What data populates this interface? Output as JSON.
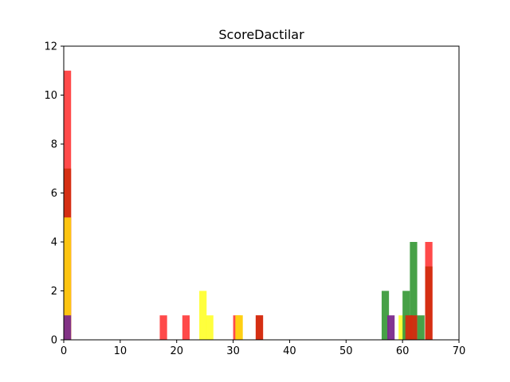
{
  "chart_data": {
    "type": "bar",
    "title": "ScoreDactilar",
    "xlabel": "",
    "ylabel": "",
    "xlim": [
      0,
      70
    ],
    "ylim": [
      0,
      12
    ],
    "x_ticks": [
      0,
      10,
      20,
      30,
      40,
      50,
      60,
      70
    ],
    "y_ticks": [
      0,
      2,
      4,
      6,
      8,
      10,
      12
    ],
    "grid": false,
    "legend": "none",
    "bin_width": 1.3,
    "colors": {
      "red": "#ff0000",
      "yellow": "#ffff00",
      "green": "#008000",
      "purple": "#800080",
      "orange": "#ffbf00",
      "dark_red": "#cc1100"
    },
    "series": [
      {
        "color": "#ff4040",
        "values": [
          {
            "x": 0,
            "y": 11
          },
          {
            "x": 17,
            "y": 1
          },
          {
            "x": 21,
            "y": 1
          },
          {
            "x": 30,
            "y": 1
          },
          {
            "x": 34,
            "y": 1
          },
          {
            "x": 60.5,
            "y": 1
          },
          {
            "x": 64,
            "y": 4
          }
        ]
      },
      {
        "color": "#ffff33",
        "values": [
          {
            "x": 24,
            "y": 2
          },
          {
            "x": 25.2,
            "y": 1
          },
          {
            "x": 30.4,
            "y": 1
          },
          {
            "x": 59.3,
            "y": 1
          }
        ]
      },
      {
        "color": "#3d9c3d",
        "values": [
          {
            "x": 56.3,
            "y": 2
          },
          {
            "x": 60,
            "y": 2
          },
          {
            "x": 61.3,
            "y": 4
          },
          {
            "x": 62.6,
            "y": 1
          }
        ]
      },
      {
        "color": "#d32d10",
        "values": [
          {
            "x": 0,
            "y": 7
          },
          {
            "x": 34,
            "y": 1
          },
          {
            "x": 60.5,
            "y": 1
          },
          {
            "x": 61.3,
            "y": 1
          },
          {
            "x": 64,
            "y": 3
          }
        ]
      },
      {
        "color": "#ffcc11",
        "values": [
          {
            "x": 0,
            "y": 5
          },
          {
            "x": 30.4,
            "y": 1
          }
        ]
      },
      {
        "color": "#7b2a8c",
        "values": [
          {
            "x": 0,
            "y": 1
          },
          {
            "x": 57.3,
            "y": 1
          }
        ]
      }
    ]
  }
}
